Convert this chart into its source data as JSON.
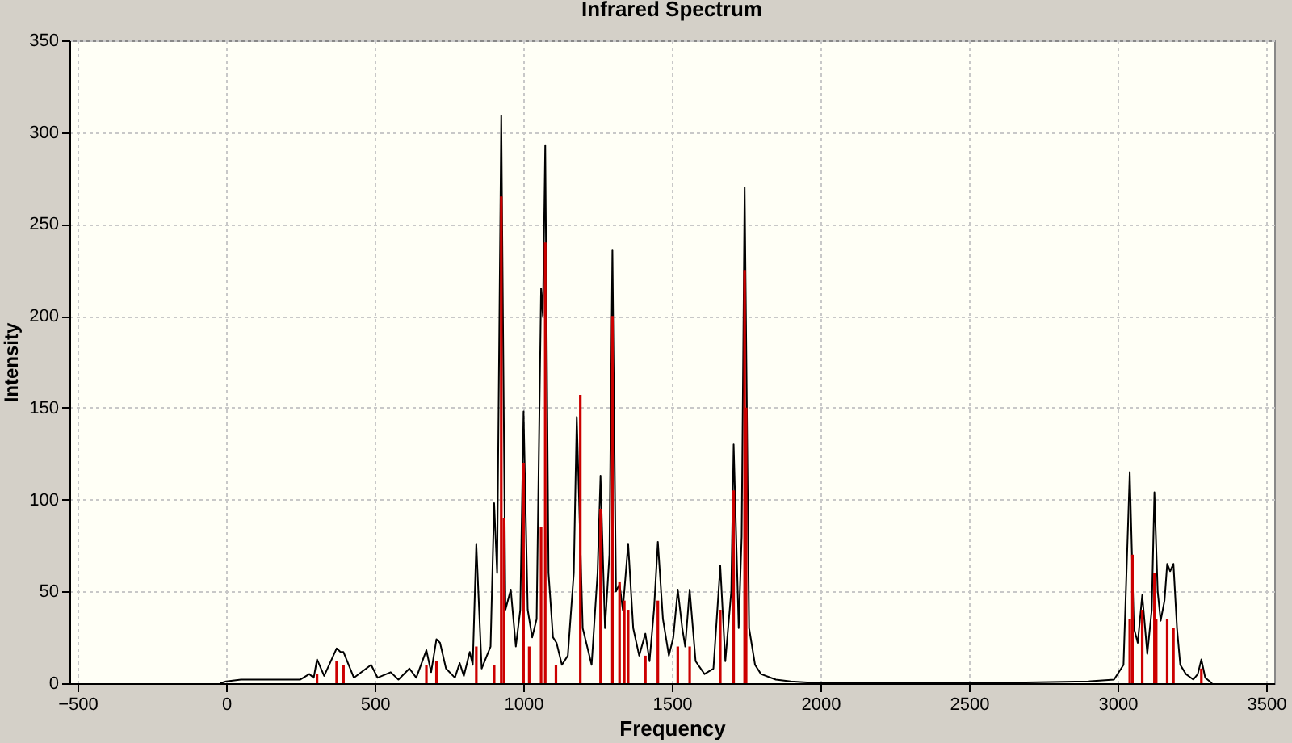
{
  "chart_data": {
    "type": "line",
    "title": "Infrared Spectrum",
    "xlabel": "Frequency",
    "ylabel": "Intensity",
    "xlim": [
      -500,
      3500
    ],
    "ylim": [
      0,
      350
    ],
    "xticks": [
      -500,
      0,
      500,
      1000,
      1500,
      2000,
      2500,
      3000,
      3500
    ],
    "yticks": [
      0,
      50,
      100,
      150,
      200,
      250,
      300,
      350
    ],
    "grid": true,
    "series": [
      {
        "type": "bar",
        "color": "#cc0000",
        "x": [
          306,
          372,
          395,
          674,
          708,
          842,
          902,
          926,
          935,
          1001,
          1020,
          1060,
          1074,
          1110,
          1192,
          1260,
          1300,
          1324,
          1340,
          1353,
          1411,
          1453,
          1520,
          1560,
          1663,
          1708,
          1745,
          1750,
          3041,
          3050,
          3083,
          3124,
          3130,
          3167,
          3188,
          3282
        ],
        "values": [
          5,
          12,
          10,
          10,
          12,
          20,
          10,
          265,
          90,
          120,
          20,
          85,
          240,
          10,
          157,
          95,
          200,
          55,
          45,
          40,
          15,
          45,
          20,
          20,
          40,
          105,
          225,
          150,
          35,
          70,
          40,
          60,
          35,
          35,
          30,
          8
        ]
      },
      {
        "color": "#000000",
        "x": [
          -20,
          0,
          50,
          100,
          150,
          200,
          250,
          280,
          295,
          306,
          330,
          372,
          385,
          395,
          430,
          488,
          510,
          554,
          580,
          617,
          640,
          674,
          690,
          708,
          720,
          740,
          770,
          786,
          800,
          820,
          830,
          842,
          860,
          890,
          902,
          912,
          926,
          940,
          958,
          975,
          990,
          1001,
          1015,
          1030,
          1045,
          1060,
          1066,
          1074,
          1085,
          1100,
          1112,
          1130,
          1150,
          1170,
          1180,
          1200,
          1230,
          1250,
          1260,
          1275,
          1290,
          1300,
          1312,
          1324,
          1335,
          1353,
          1370,
          1390,
          1411,
          1425,
          1440,
          1453,
          1470,
          1490,
          1505,
          1520,
          1535,
          1545,
          1560,
          1580,
          1610,
          1640,
          1663,
          1680,
          1700,
          1708,
          1725,
          1735,
          1745,
          1760,
          1780,
          1800,
          1850,
          1900,
          2000,
          2500,
          2900,
          2988,
          3020,
          3041,
          3055,
          3068,
          3083,
          3100,
          3115,
          3124,
          3135,
          3145,
          3158,
          3167,
          3177,
          3188,
          3200,
          3211,
          3230,
          3255,
          3270,
          3282,
          3295,
          3318
        ],
        "values": [
          0,
          1,
          2,
          2,
          2,
          2,
          2,
          5,
          3,
          13,
          4,
          19,
          17,
          17,
          3,
          10,
          3,
          6,
          2,
          8,
          3,
          18,
          6,
          24,
          22,
          8,
          3,
          11,
          4,
          17,
          10,
          76,
          8,
          20,
          98,
          60,
          309,
          40,
          51,
          20,
          40,
          148,
          40,
          25,
          35,
          215,
          200,
          293,
          60,
          25,
          22,
          10,
          15,
          60,
          145,
          30,
          10,
          60,
          113,
          30,
          70,
          236,
          50,
          54,
          40,
          76,
          30,
          15,
          27,
          12,
          40,
          77,
          35,
          15,
          25,
          51,
          30,
          20,
          51,
          12,
          5,
          8,
          64,
          12,
          50,
          130,
          30,
          80,
          270,
          30,
          10,
          5,
          2,
          1,
          0,
          0,
          1,
          2,
          10,
          115,
          30,
          22,
          48,
          16,
          40,
          104,
          50,
          34,
          45,
          65,
          61,
          65,
          30,
          10,
          5,
          2,
          5,
          13,
          3,
          0
        ]
      }
    ]
  }
}
